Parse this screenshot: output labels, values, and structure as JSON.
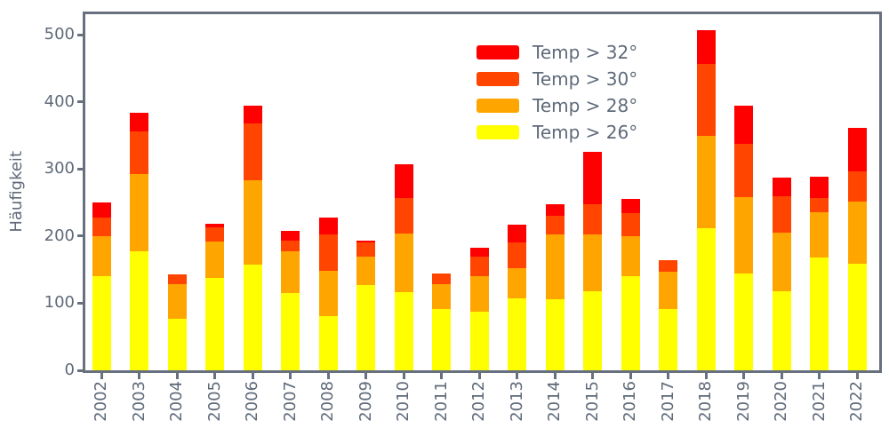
{
  "colors": {
    "background": "#ffffff",
    "axis": "#67707f",
    "text": "#5f6a79",
    "red": "#ff0000",
    "orangered": "#ff4500",
    "orange": "#ffa500",
    "yellow": "#ffff00"
  },
  "chart_data": {
    "type": "bar",
    "stacked": true,
    "title": "",
    "xlabel": "",
    "ylabel": "Häufigkeit",
    "grid": false,
    "legend_position": "upper center inside plot",
    "ylim": [
      0,
      531
    ],
    "yticks": [
      0,
      100,
      200,
      300,
      400,
      500
    ],
    "categories": [
      "2002",
      "2003",
      "2004",
      "2005",
      "2006",
      "2007",
      "2008",
      "2009",
      "2010",
      "2011",
      "2012",
      "2013",
      "2014",
      "2015",
      "2016",
      "2017",
      "2018",
      "2019",
      "2020",
      "2021",
      "2022"
    ],
    "series": [
      {
        "name": "Temp > 32°",
        "color": "#ff0000",
        "values": [
          22,
          28,
          0,
          6,
          26,
          15,
          26,
          3,
          50,
          0,
          13,
          26,
          17,
          78,
          21,
          0,
          50,
          57,
          28,
          32,
          65
        ]
      },
      {
        "name": "Temp > 30°",
        "color": "#ff4500",
        "values": [
          28,
          63,
          14,
          21,
          85,
          15,
          54,
          22,
          53,
          16,
          29,
          39,
          29,
          46,
          34,
          17,
          108,
          80,
          54,
          21,
          45
        ]
      },
      {
        "name": "Temp > 28°",
        "color": "#ffa500",
        "values": [
          60,
          116,
          52,
          54,
          126,
          63,
          67,
          42,
          88,
          36,
          54,
          45,
          96,
          84,
          60,
          55,
          137,
          114,
          87,
          68,
          93
        ]
      },
      {
        "name": "Temp > 26°",
        "color": "#ffff00",
        "values": [
          140,
          177,
          77,
          138,
          157,
          115,
          81,
          127,
          116,
          92,
          87,
          107,
          106,
          118,
          140,
          92,
          212,
          144,
          118,
          168,
          159
        ]
      }
    ],
    "totals": [
      250,
      384,
      143,
      219,
      394,
      208,
      228,
      194,
      307,
      144,
      183,
      217,
      248,
      326,
      255,
      164,
      507,
      395,
      287,
      289,
      362
    ]
  }
}
